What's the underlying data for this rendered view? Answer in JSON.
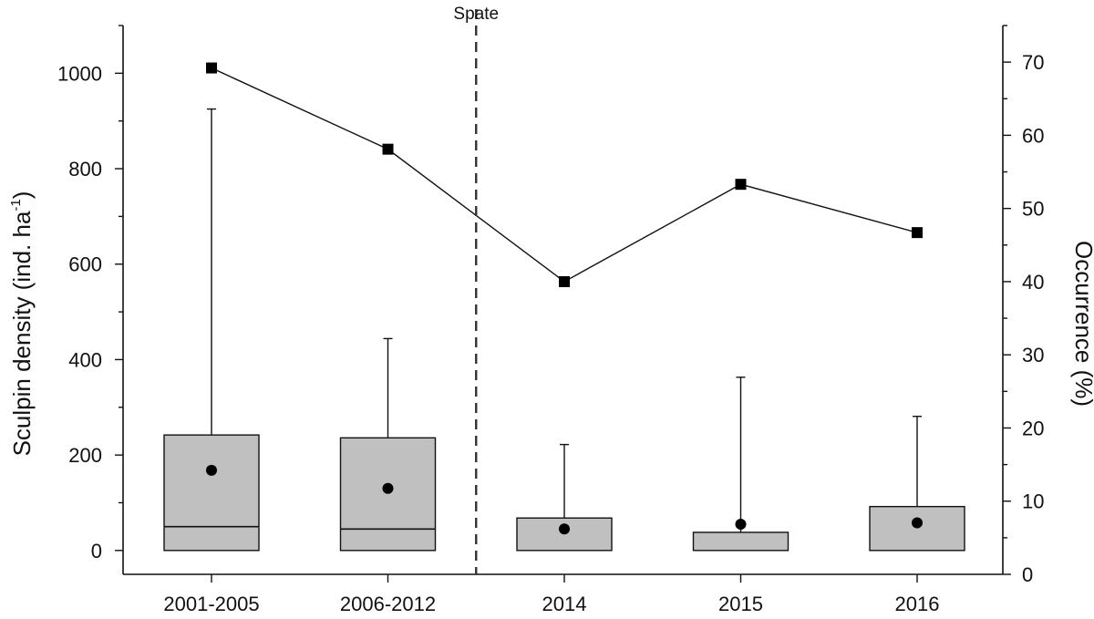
{
  "chart_data": {
    "type": "box",
    "categories": [
      "2001-2005",
      "2006-2012",
      "2014",
      "2015",
      "2016"
    ],
    "left_axis": {
      "label_main": "Sculpin density (ind. ha",
      "label_sup": "-1",
      "label_end": ")",
      "ylim": [
        -50,
        1100
      ],
      "ticks": [
        0,
        200,
        400,
        600,
        800,
        1000
      ]
    },
    "right_axis": {
      "label": "Occurrence (%)",
      "ylim": [
        0,
        75
      ],
      "ticks": [
        0,
        10,
        20,
        30,
        40,
        50,
        60,
        70
      ]
    },
    "boxes": [
      {
        "category": "2001-2005",
        "q1": 0,
        "median": 50,
        "q3": 242,
        "whisker_low": 0,
        "whisker_high": 925,
        "mean": 168
      },
      {
        "category": "2006-2012",
        "q1": 0,
        "median": 45,
        "q3": 236,
        "whisker_low": 0,
        "whisker_high": 444,
        "mean": 130
      },
      {
        "category": "2014",
        "q1": 0,
        "median": 0,
        "q3": 68,
        "whisker_low": 0,
        "whisker_high": 222,
        "mean": 45
      },
      {
        "category": "2015",
        "q1": 0,
        "median": 0,
        "q3": 38,
        "whisker_low": 0,
        "whisker_high": 363,
        "mean": 55
      },
      {
        "category": "2016",
        "q1": 0,
        "median": 0,
        "q3": 92,
        "whisker_low": 0,
        "whisker_high": 281,
        "mean": 58
      }
    ],
    "occurrence": [
      69.2,
      58.1,
      40.0,
      53.3,
      46.7
    ],
    "annotation": {
      "text": "Spate",
      "between": [
        "2006-2012",
        "2014"
      ]
    },
    "grid": false,
    "legend": "none"
  }
}
